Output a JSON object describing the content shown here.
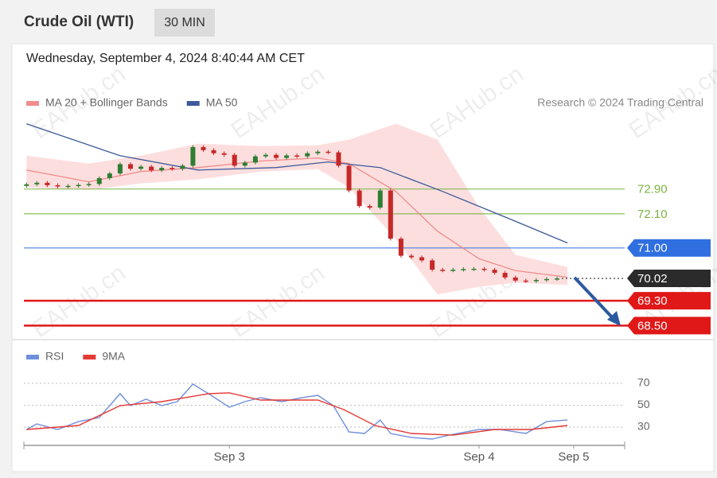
{
  "watermark": "EAHub.cn",
  "chart_data": [
    {
      "type": "candlestick",
      "title": "Crude Oil (WTI)",
      "timeframe": "30 MIN",
      "subtitle": "Wednesday, September 4, 2024 8:40:44 AM CET",
      "annotation": "Research © 2024 Trading Central",
      "up_color": "#2e7d32",
      "down_color": "#c62828",
      "band_color": "#fdd8d8",
      "xlim": [
        -0.5,
        115
      ],
      "ylim": [
        68.1,
        75.4
      ],
      "x": [
        0,
        2,
        4,
        6,
        8,
        10,
        12,
        14,
        16,
        18,
        20,
        22,
        24,
        26,
        28,
        30,
        32,
        34,
        36,
        38,
        40,
        42,
        44,
        46,
        48,
        50,
        52,
        54,
        56,
        58,
        60,
        62,
        64,
        66,
        68,
        70,
        72,
        74,
        76,
        78,
        80,
        82,
        84,
        86,
        88,
        90,
        92,
        94,
        96,
        98,
        100,
        102
      ],
      "open": [
        73.0,
        73.05,
        73.1,
        73.02,
        72.98,
        73.0,
        73.03,
        73.06,
        73.25,
        73.4,
        73.7,
        73.55,
        73.62,
        73.5,
        73.58,
        73.55,
        73.65,
        74.25,
        74.15,
        74.05,
        74.0,
        73.65,
        73.75,
        73.95,
        74.0,
        73.9,
        73.98,
        73.95,
        74.05,
        74.1,
        74.08,
        73.65,
        72.85,
        72.35,
        72.3,
        72.85,
        71.3,
        70.75,
        70.7,
        70.6,
        70.3,
        70.28,
        70.3,
        70.32,
        70.33,
        70.3,
        70.2,
        70.05,
        69.95,
        69.93,
        69.97,
        70.0
      ],
      "high": [
        73.11,
        73.16,
        73.16,
        73.08,
        73.06,
        73.09,
        73.12,
        73.31,
        73.46,
        73.76,
        73.76,
        73.68,
        73.68,
        73.64,
        73.64,
        73.71,
        74.31,
        74.31,
        74.21,
        74.11,
        74.06,
        73.81,
        74.01,
        74.06,
        74.06,
        74.04,
        74.04,
        74.11,
        74.16,
        74.16,
        74.14,
        73.71,
        72.91,
        72.41,
        72.91,
        72.91,
        71.36,
        70.81,
        70.76,
        70.66,
        70.36,
        70.36,
        70.38,
        70.39,
        70.39,
        70.36,
        70.26,
        70.11,
        70.01,
        70.03,
        70.06,
        70.08
      ],
      "low": [
        72.94,
        72.99,
        72.96,
        72.92,
        72.92,
        72.94,
        72.97,
        73.0,
        73.19,
        73.34,
        73.49,
        73.49,
        73.44,
        73.44,
        73.49,
        73.49,
        73.59,
        74.09,
        73.99,
        73.94,
        73.59,
        73.59,
        73.69,
        73.89,
        73.84,
        73.84,
        73.89,
        73.89,
        73.99,
        74.02,
        73.59,
        72.79,
        72.29,
        72.24,
        72.24,
        71.24,
        70.69,
        70.64,
        70.54,
        70.24,
        70.22,
        70.22,
        70.24,
        70.26,
        70.24,
        70.14,
        69.99,
        69.89,
        69.87,
        69.87,
        69.91,
        69.94
      ],
      "close": [
        73.05,
        73.1,
        73.02,
        72.98,
        73.0,
        73.03,
        73.06,
        73.25,
        73.4,
        73.7,
        73.55,
        73.62,
        73.5,
        73.58,
        73.55,
        73.65,
        74.25,
        74.15,
        74.05,
        74.0,
        73.65,
        73.75,
        73.95,
        74.0,
        73.9,
        73.98,
        73.95,
        74.05,
        74.1,
        74.08,
        73.65,
        72.85,
        72.35,
        72.3,
        72.85,
        71.3,
        70.75,
        70.7,
        70.6,
        70.3,
        70.28,
        70.3,
        70.32,
        70.33,
        70.3,
        70.2,
        70.05,
        69.95,
        69.93,
        69.97,
        70.0,
        70.02
      ],
      "series": [
        {
          "name": "MA 20 + Bollinger Bands",
          "color": "#f08c8c",
          "x": [
            0,
            12,
            22,
            33,
            45,
            56,
            62,
            71,
            79,
            87,
            94,
            104
          ],
          "values": [
            73.51,
            73.13,
            73.46,
            73.59,
            73.8,
            73.9,
            73.72,
            72.82,
            71.54,
            70.65,
            70.27,
            70.06
          ],
          "upper": [
            73.97,
            73.72,
            73.97,
            74.36,
            74.28,
            74.31,
            74.49,
            75.0,
            74.49,
            72.31,
            70.78,
            70.39
          ],
          "lower": [
            72.95,
            72.87,
            73.08,
            73.21,
            73.46,
            73.54,
            72.95,
            71.29,
            69.5,
            69.75,
            69.88,
            69.81
          ]
        },
        {
          "name": "MA 50",
          "color": "#3c5a9a",
          "x": [
            0,
            18,
            33,
            48,
            58,
            68,
            80,
            93,
            104
          ],
          "values": [
            75.0,
            73.97,
            73.51,
            73.59,
            73.77,
            73.59,
            72.82,
            71.93,
            71.16
          ]
        }
      ],
      "levels": [
        {
          "value": 72.9,
          "label": "72.90",
          "color": "#7cb342",
          "line": "thin",
          "tag": false
        },
        {
          "value": 72.1,
          "label": "72.10",
          "color": "#7cb342",
          "line": "thin",
          "tag": false
        },
        {
          "value": 71.0,
          "label": "71.00",
          "color": "#2f6fe0",
          "line": "thin",
          "tag": true
        },
        {
          "value": 70.02,
          "label": "70.02",
          "color": "#2b2b2b",
          "line": "dotted",
          "tag": true
        },
        {
          "value": 69.3,
          "label": "69.30",
          "color": "#e01818",
          "line": "thick",
          "tag": true
        },
        {
          "value": 68.5,
          "label": "68.50",
          "color": "#e01818",
          "line": "thick",
          "tag": true
        }
      ]
    },
    {
      "type": "line",
      "xlim": [
        -0.5,
        115
      ],
      "ylim": [
        13.3,
        100.5
      ],
      "yticks": [
        30,
        50,
        70
      ],
      "xticks": [
        {
          "value": 39,
          "label": "Sep 3"
        },
        {
          "value": 87,
          "label": "Sep 4"
        },
        {
          "value": 105.2,
          "label": "Sep 5"
        }
      ],
      "series": [
        {
          "name": "RSI",
          "color": "#6f8fdc",
          "x": [
            0,
            2,
            6,
            10,
            14,
            18,
            20,
            23,
            26,
            29,
            32,
            35,
            39,
            42,
            45,
            49,
            53,
            56,
            59,
            62,
            65,
            68,
            70,
            74,
            78,
            82,
            87,
            91,
            96,
            100,
            104
          ],
          "values": [
            27.8,
            32.9,
            27.8,
            35,
            38.7,
            60.5,
            49.6,
            55.5,
            49.6,
            53.3,
            69.3,
            60.5,
            48.2,
            53.3,
            56.9,
            53.3,
            56.9,
            59.1,
            49.6,
            25.6,
            24.2,
            36.5,
            24.2,
            20.5,
            19.1,
            23.5,
            27.8,
            27.8,
            24.2,
            35,
            36.5
          ]
        },
        {
          "name": "9MA",
          "color": "#e53935",
          "x": [
            0,
            10,
            18,
            26,
            35,
            39,
            45,
            56,
            61,
            67,
            74,
            82,
            90,
            97,
            104
          ],
          "values": [
            27.8,
            31.5,
            49.6,
            53.3,
            60.5,
            61.3,
            54.7,
            54.7,
            46,
            31.5,
            24.2,
            22.7,
            27.8,
            27.8,
            31.5
          ]
        }
      ]
    }
  ]
}
